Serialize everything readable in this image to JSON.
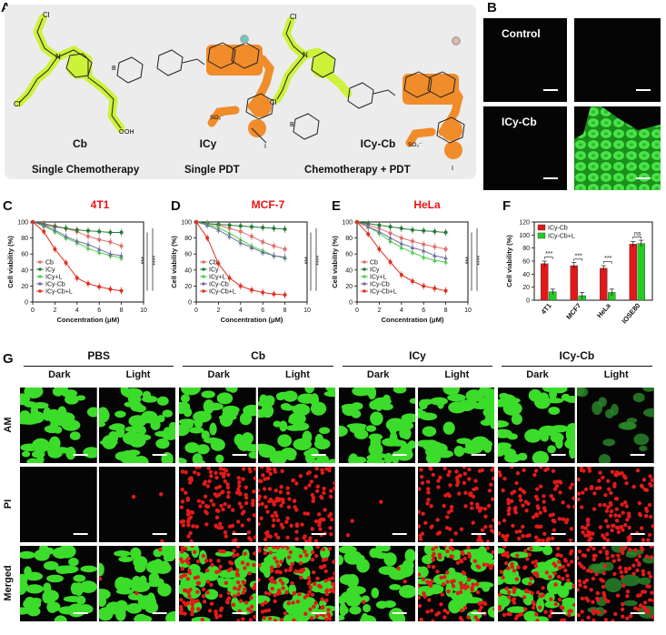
{
  "panel_labels": {
    "a": "A",
    "b": "B",
    "c": "C",
    "d": "D",
    "e": "E",
    "f": "F",
    "g": "G"
  },
  "panel_a": {
    "mol_cb": "Cb",
    "mol_icy": "ICy",
    "mol_icycb": "ICy-Cb",
    "therapy_1": "Single Chemotherapy",
    "therapy_2": "Single PDT",
    "therapy_3": "Chemotherapy + PDT",
    "atoms": {
      "cl": "Cl",
      "n": "N",
      "oh": "OH",
      "o": "O",
      "b": "B",
      "so3": "SO₃⁻",
      "i": "I"
    }
  },
  "panel_b": {
    "control": "Control",
    "icy_cb": "ICy-Cb"
  },
  "colors": {
    "red": "#e21818",
    "green": "#22cc22",
    "cb": "#e07070",
    "icy": "#2a7a3a",
    "icy_l": "#4ccf4c",
    "icycb": "#7070a0",
    "icycb_l": "#e03020",
    "accent": "#e11111",
    "scaffold_green": "#ccf23a",
    "scaffold_orange": "#f08c2a"
  },
  "chart_data": [
    {
      "type": "line",
      "panel": "C",
      "title": "4T1",
      "xlabel": "Concentration (μM)",
      "ylabel": "Cell viability (%)",
      "xlim": [
        0,
        10
      ],
      "ylim": [
        0,
        100
      ],
      "x": [
        0,
        1,
        2,
        3,
        4,
        5,
        6,
        7,
        8
      ],
      "xticks": [
        0,
        2,
        4,
        6,
        8,
        10
      ],
      "yticks": [
        0,
        20,
        40,
        60,
        80,
        100
      ],
      "series": [
        {
          "name": "Cb",
          "values": [
            100,
            98,
            95,
            92,
            88,
            82,
            78,
            75,
            70
          ]
        },
        {
          "name": "ICy",
          "values": [
            100,
            97,
            94,
            92,
            90,
            89,
            88,
            87,
            87
          ]
        },
        {
          "name": "ICy+L",
          "values": [
            100,
            95,
            88,
            80,
            74,
            67,
            62,
            58,
            55
          ]
        },
        {
          "name": "ICy-Cb",
          "values": [
            100,
            96,
            90,
            82,
            76,
            72,
            66,
            60,
            58
          ]
        },
        {
          "name": "ICy-Cb+L",
          "values": [
            100,
            88,
            66,
            49,
            30,
            23,
            19,
            16,
            14
          ]
        }
      ],
      "significance": [
        "***",
        "****"
      ]
    },
    {
      "type": "line",
      "panel": "D",
      "title": "MCF-7",
      "xlabel": "Concentration (μM)",
      "ylabel": "Cell viability (%)",
      "xlim": [
        0,
        10
      ],
      "ylim": [
        0,
        100
      ],
      "x": [
        0,
        1,
        2,
        3,
        4,
        5,
        6,
        7,
        8
      ],
      "xticks": [
        0,
        2,
        4,
        6,
        8,
        10
      ],
      "yticks": [
        0,
        20,
        40,
        60,
        80,
        100
      ],
      "series": [
        {
          "name": "Cb",
          "values": [
            100,
            98,
            96,
            92,
            88,
            82,
            75,
            70,
            66
          ]
        },
        {
          "name": "ICy",
          "values": [
            100,
            98,
            97,
            96,
            95,
            94,
            93,
            92,
            91
          ]
        },
        {
          "name": "ICy+L",
          "values": [
            100,
            97,
            93,
            86,
            78,
            70,
            64,
            58,
            55
          ]
        },
        {
          "name": "ICy-Cb",
          "values": [
            100,
            96,
            90,
            82,
            74,
            68,
            62,
            58,
            56
          ]
        },
        {
          "name": "ICy-Cb+L",
          "values": [
            100,
            80,
            48,
            30,
            20,
            15,
            12,
            10,
            9
          ]
        }
      ],
      "significance": [
        "***",
        "****"
      ]
    },
    {
      "type": "line",
      "panel": "E",
      "title": "HeLa",
      "xlabel": "Concentration (μM)",
      "ylabel": "Cell viability (%)",
      "xlim": [
        0,
        10
      ],
      "ylim": [
        0,
        100
      ],
      "x": [
        0,
        1,
        2,
        3,
        4,
        5,
        6,
        7,
        8
      ],
      "xticks": [
        0,
        2,
        4,
        6,
        8,
        10
      ],
      "yticks": [
        0,
        20,
        40,
        60,
        80,
        100
      ],
      "series": [
        {
          "name": "Cb",
          "values": [
            100,
            96,
            92,
            86,
            80,
            76,
            72,
            69,
            66
          ]
        },
        {
          "name": "ICy",
          "values": [
            100,
            98,
            96,
            94,
            92,
            90,
            89,
            88,
            87
          ]
        },
        {
          "name": "ICy+L",
          "values": [
            100,
            94,
            86,
            76,
            68,
            62,
            56,
            52,
            50
          ]
        },
        {
          "name": "ICy-Cb",
          "values": [
            100,
            94,
            88,
            80,
            73,
            68,
            64,
            58,
            55
          ]
        },
        {
          "name": "ICy-Cb+L",
          "values": [
            100,
            85,
            66,
            50,
            34,
            26,
            20,
            17,
            14
          ]
        }
      ],
      "significance": [
        "***",
        "****"
      ]
    },
    {
      "type": "bar",
      "panel": "F",
      "ylabel": "Cell viability (%)",
      "categories": [
        "4T1",
        "MCF7",
        "HeLa",
        "IOSE80"
      ],
      "ylim": [
        0,
        120
      ],
      "yticks": [
        0,
        20,
        40,
        60,
        80,
        100,
        120
      ],
      "series": [
        {
          "name": "ICy-Cb",
          "values": [
            56,
            53,
            49,
            86
          ],
          "errors": [
            4,
            5,
            4,
            4
          ]
        },
        {
          "name": "ICy-Cb+L",
          "values": [
            13,
            7,
            12,
            87
          ],
          "errors": [
            4,
            5,
            5,
            5
          ]
        }
      ],
      "significance": [
        "***",
        "***",
        "***",
        "ns"
      ]
    }
  ],
  "panel_g": {
    "groups": [
      "PBS",
      "Cb",
      "ICy",
      "ICy-Cb"
    ],
    "conditions": [
      "Dark",
      "Light"
    ],
    "rows": [
      "AM",
      "PI",
      "Merged"
    ]
  }
}
